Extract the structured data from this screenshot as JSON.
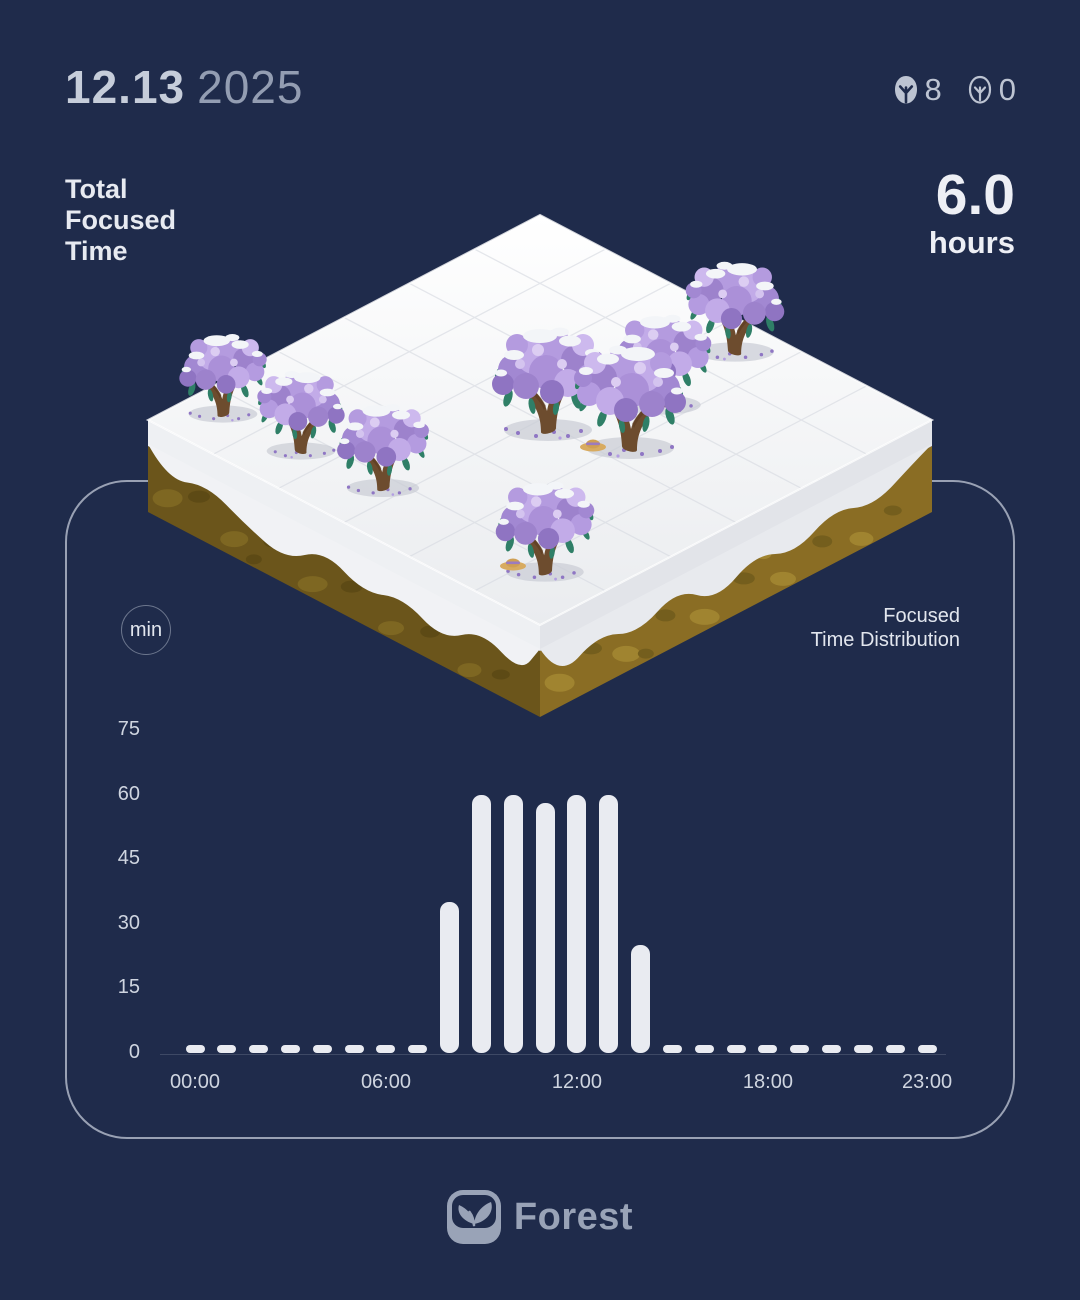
{
  "header": {
    "date_month_day": "12.13",
    "date_year": "2025",
    "planted_count": "8",
    "withered_count": "0"
  },
  "summary": {
    "total_label": "Total Focused Time",
    "value": "6.0",
    "unit": "hours"
  },
  "chart": {
    "unit_badge": "min",
    "title_line1": "Focused",
    "title_line2": "Time Distribution"
  },
  "footer": {
    "brand": "Forest"
  },
  "colors": {
    "background": "#1f2b4b",
    "bar": "#e9ebf1",
    "card_border": "#b8bfce",
    "text_bright": "#e7eaf1",
    "text_muted": "#939db2"
  },
  "chart_data": {
    "type": "bar",
    "title": "Focused Time Distribution",
    "unit": "min",
    "x": [
      0,
      1,
      2,
      3,
      4,
      5,
      6,
      7,
      8,
      9,
      10,
      11,
      12,
      13,
      14,
      15,
      16,
      17,
      18,
      19,
      20,
      21,
      22,
      23
    ],
    "values": [
      0,
      0,
      0,
      0,
      0,
      0,
      0,
      0,
      35,
      60,
      60,
      58,
      60,
      60,
      25,
      0,
      0,
      0,
      0,
      0,
      0,
      0,
      0,
      0
    ],
    "ylim": [
      0,
      75
    ],
    "yticks": [
      0,
      15,
      30,
      45,
      60,
      75
    ],
    "xtick_labels": {
      "0": "00:00",
      "6": "06:00",
      "12": "12:00",
      "18": "18:00",
      "23": "23:00"
    },
    "grid": "off",
    "legend": "none",
    "total_minutes": 358
  }
}
